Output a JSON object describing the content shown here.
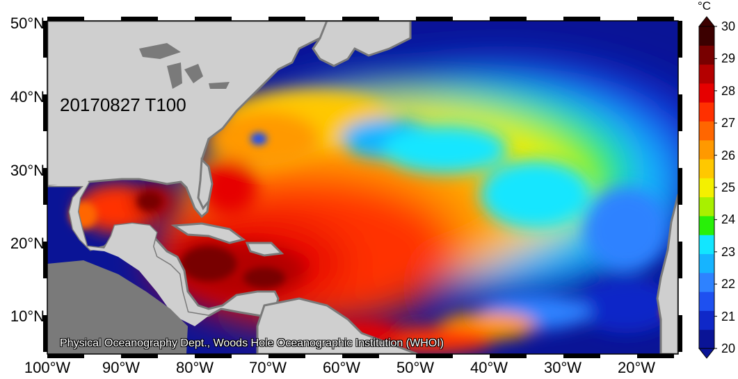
{
  "map": {
    "stamp": "20170827 T100",
    "credit": "Physical Oceanography Dept., Woods Hole Oceanographic Institution (WHOI)",
    "lat_labels": [
      "50°N",
      "40°N",
      "30°N",
      "20°N",
      "10°N"
    ],
    "lon_labels": [
      "100°W",
      "90°W",
      "80°W",
      "70°W",
      "60°W",
      "50°W",
      "40°W",
      "30°W",
      "20°W"
    ],
    "land_color": "#cfcfcf",
    "coast_color": "#7a7a7a"
  },
  "colorbar": {
    "unit": "°C",
    "min": 20,
    "max": 30,
    "labels": [
      "30",
      "29",
      "28",
      "27",
      "26",
      "25",
      "24",
      "23",
      "22",
      "21",
      "20"
    ],
    "colors": [
      "#0a1496",
      "#0f28c8",
      "#1e50f0",
      "#2e82ff",
      "#16b4ff",
      "#12e6ff",
      "#28f008",
      "#a8f000",
      "#f4f000",
      "#ffc800",
      "#ff9900",
      "#ff6600",
      "#ff3000",
      "#e60000",
      "#b40000",
      "#780000",
      "#3c0000"
    ]
  }
}
